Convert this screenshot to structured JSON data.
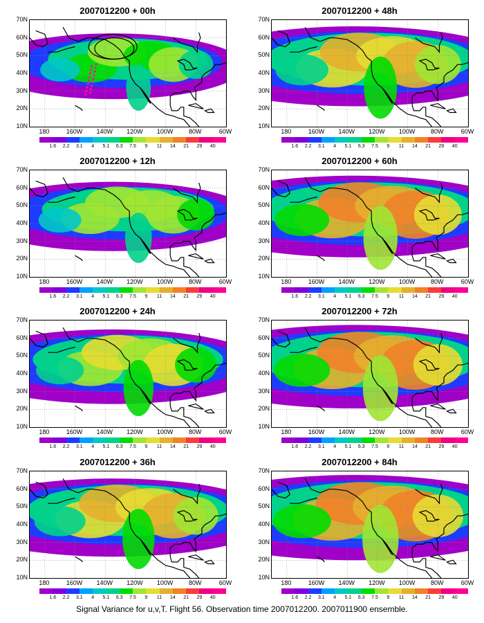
{
  "panels": [
    {
      "title": "2007012200 + 00h",
      "intensity": 0.25,
      "spread": 0.45
    },
    {
      "title": "2007012200 + 48h",
      "intensity": 0.7,
      "spread": 0.85
    },
    {
      "title": "2007012200 + 12h",
      "intensity": 0.35,
      "spread": 0.55
    },
    {
      "title": "2007012200 + 60h",
      "intensity": 0.8,
      "spread": 0.9
    },
    {
      "title": "2007012200 + 24h",
      "intensity": 0.5,
      "spread": 0.7
    },
    {
      "title": "2007012200 + 72h",
      "intensity": 0.85,
      "spread": 0.95
    },
    {
      "title": "2007012200 + 36h",
      "intensity": 0.6,
      "spread": 0.8
    },
    {
      "title": "2007012200 + 84h",
      "intensity": 0.9,
      "spread": 1.0
    }
  ],
  "lat_labels": [
    "70N",
    "60N",
    "50N",
    "40N",
    "30N",
    "20N",
    "10N"
  ],
  "lon_labels": [
    "180",
    "160W",
    "140W",
    "120W",
    "100W",
    "80W",
    "60W"
  ],
  "colorbar": {
    "labels": [
      "1.6",
      "2.2",
      "3.1",
      "4",
      "5.1",
      "6.3",
      "7.5",
      "9",
      "11",
      "14",
      "21",
      "29",
      "40"
    ],
    "colors": [
      "#a000c8",
      "#8200dc",
      "#1e3cff",
      "#00a0ff",
      "#00c8c8",
      "#00d28c",
      "#00dc00",
      "#a0e632",
      "#e6dc32",
      "#e6af2d",
      "#f08228",
      "#fa3c3c",
      "#f00082",
      "#ff0096"
    ]
  },
  "caption": "Signal Variance for u,v,T. Flight 56. Observation time 2007012200. 2007011900 ensemble."
}
